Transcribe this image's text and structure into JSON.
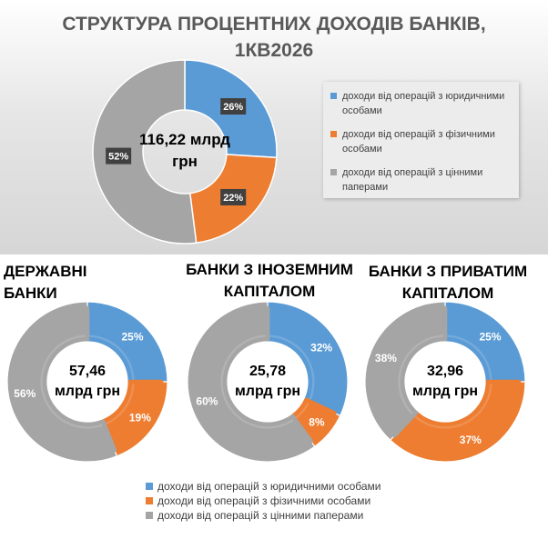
{
  "main": {
    "title_line1": "СТРУКТУРА ПРОЦЕНТНИХ ДОХОДІВ БАНКІВ,",
    "title_line2": "1КВ2026",
    "legend": [
      "доходи від операцій з юридичними особами",
      "доходи від операцій з фізичними особами",
      "доходи від операцій з цінними паперами"
    ]
  },
  "subtitles": {
    "state_banks": "ДЕРЖАВНІ БАНКИ",
    "foreign_line1": "БАНКИ З ІНОЗЕМНИМ",
    "foreign_line2": "КАПІТАЛОМ",
    "private_line1": "БАНКИ З ПРИВАТИМ",
    "private_line2": "КАПІТАЛОМ"
  },
  "bottom_legend": [
    "доходи від операцій з юридичними особами",
    "доходи від операцій з фізичними особами",
    "доходи від операцій з цінними паперами"
  ],
  "colors": {
    "blue": "#5b9bd5",
    "orange": "#ed7d31",
    "gray": "#a5a5a5"
  },
  "chart_data": [
    {
      "type": "pie",
      "variant": "donut",
      "title": "СТРУКТУРА ПРОЦЕНТНИХ ДОХОДІВ БАНКІВ, 1КВ2026",
      "center_label": [
        "116,22 млрд",
        "грн"
      ],
      "categories": [
        "доходи від операцій з юридичними особами",
        "доходи від операцій з фізичними особами",
        "доходи від операцій з цінними паперами"
      ],
      "values": [
        26,
        22,
        52
      ],
      "labels": [
        "26%",
        "22%",
        "52%"
      ],
      "legend": "right"
    },
    {
      "type": "pie",
      "variant": "donut",
      "title": "ДЕРЖАВНІ БАНКИ",
      "center_label": [
        "57,46",
        "млрд грн"
      ],
      "categories": [
        "доходи від операцій з юридичними особами",
        "доходи від операцій з фізичними особами",
        "доходи від операцій з цінними паперами"
      ],
      "values": [
        25,
        19,
        56
      ],
      "labels": [
        "25%",
        "19%",
        "56%"
      ]
    },
    {
      "type": "pie",
      "variant": "donut",
      "title": "БАНКИ З ІНОЗЕМНИМ КАПІТАЛОМ",
      "center_label": [
        "25,78",
        "млрд грн"
      ],
      "categories": [
        "доходи від операцій з юридичними особами",
        "доходи від операцій з фізичними особами",
        "доходи від операцій з цінними паперами"
      ],
      "values": [
        32,
        8,
        60
      ],
      "labels": [
        "32%",
        "8%",
        "60%"
      ]
    },
    {
      "type": "pie",
      "variant": "donut",
      "title": "БАНКИ З ПРИВАТИМ КАПІТАЛОМ",
      "center_label": [
        "32,96",
        "млрд грн"
      ],
      "categories": [
        "доходи від операцій з юридичними особами",
        "доходи від операцій з фізичними особами",
        "доходи від операцій з цінними паперами"
      ],
      "values": [
        25,
        37,
        38
      ],
      "labels": [
        "25%",
        "37%",
        "38%"
      ],
      "legend": "bottom"
    }
  ]
}
